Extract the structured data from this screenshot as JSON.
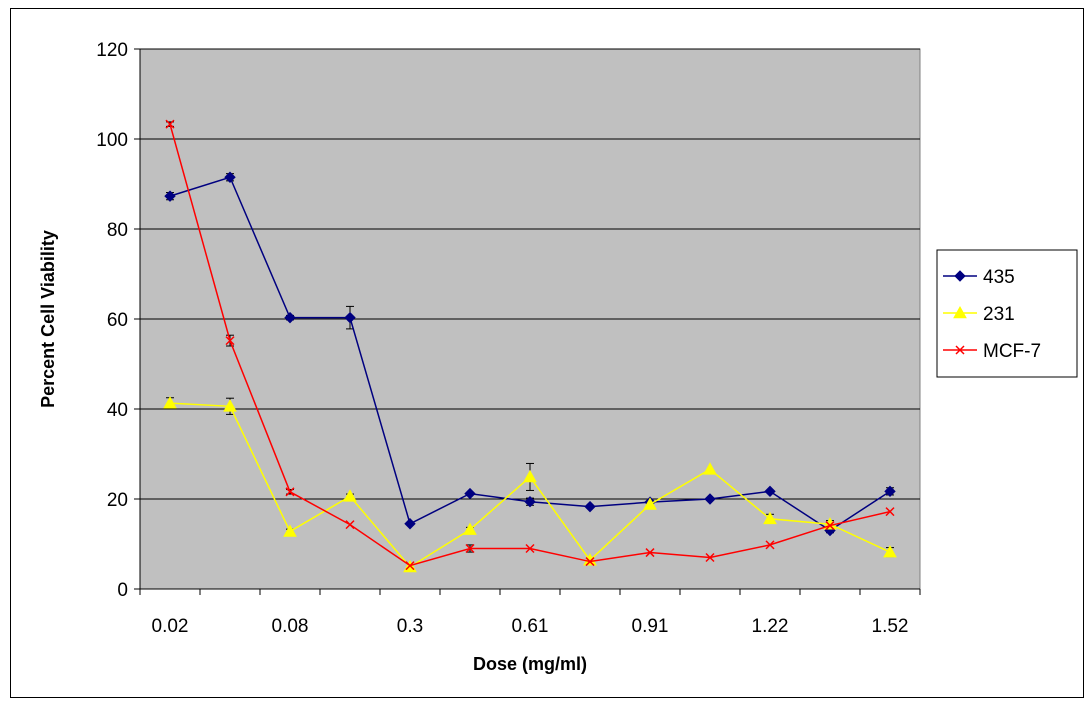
{
  "chart_data": {
    "type": "line",
    "xlabel": "Dose (mg/ml)",
    "ylabel": "Percent Cell Viability",
    "ylim": [
      0,
      120
    ],
    "yticks": [
      0,
      20,
      40,
      60,
      80,
      100,
      120
    ],
    "categories": [
      "0.02",
      "",
      "0.08",
      "",
      "0.3",
      "",
      "0.61",
      "",
      "0.91",
      "",
      "1.22",
      "",
      "1.52"
    ],
    "x_tick_labels": [
      "0.02",
      "0.08",
      "0.3",
      "0.61",
      "0.91",
      "1.22",
      "1.52"
    ],
    "grid": "horizontal major gridlines",
    "plot_background": "#c0c0c0",
    "legend_position": "right",
    "series": [
      {
        "name": "435",
        "color": "#000080",
        "marker": "diamond",
        "values": [
          87.3,
          91.5,
          60.3,
          60.3,
          14.5,
          21.2,
          19.4,
          18.3,
          19.3,
          20.0,
          21.7,
          13.0,
          21.7
        ],
        "errors": [
          0.8,
          0.8,
          0.5,
          2.5,
          0,
          0,
          0.8,
          0,
          0,
          0,
          0,
          0.5,
          0.8
        ]
      },
      {
        "name": "231",
        "color": "#ffff00",
        "marker": "triangle",
        "values": [
          41.3,
          40.6,
          12.8,
          20.6,
          4.9,
          13.2,
          24.9,
          6.4,
          18.8,
          26.6,
          15.6,
          14.4,
          8.2
        ],
        "errors": [
          1.2,
          1.8,
          0.5,
          0.5,
          0,
          0.5,
          3.0,
          0,
          0,
          0,
          1.0,
          0.8,
          1.0
        ]
      },
      {
        "name": "MCF-7",
        "color": "#ff0000",
        "marker": "x",
        "values": [
          103.3,
          55.2,
          21.6,
          14.3,
          5.2,
          9.0,
          9.0,
          6.1,
          8.1,
          7.0,
          9.8,
          14.1,
          17.2
        ],
        "errors": [
          0.5,
          1.2,
          0.5,
          0,
          0,
          0.8,
          0,
          0,
          0,
          0,
          0,
          0,
          0
        ]
      }
    ]
  }
}
